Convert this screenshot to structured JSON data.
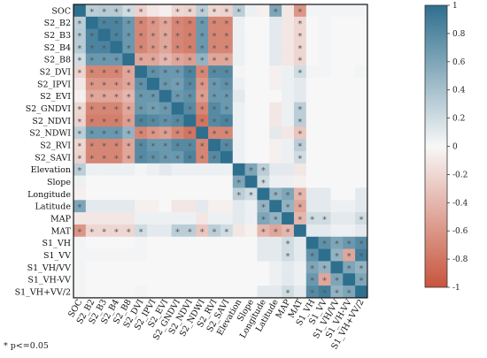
{
  "chart_data": {
    "type": "heatmap",
    "layout": "lower-diagonal full matrix",
    "labels": [
      "SOC",
      "S2_B2",
      "S2_B3",
      "S2_B4",
      "S2_B8",
      "S2_DVI",
      "S2_IPVI",
      "S2_EVI",
      "S2_GNDVI",
      "S2_NDVI",
      "S2_NDWI",
      "S2_RVI",
      "S2_SAVI",
      "Elevation",
      "Slope",
      "Longitude",
      "Latitude",
      "MAP",
      "MAT",
      "S1_VH",
      "S1_VV",
      "S1_VH/VV",
      "S1_VH-VV",
      "S1_VH+VV/2"
    ],
    "values": [
      [
        1,
        0.3,
        0.32,
        0.32,
        0.2,
        -0.22,
        -0.1,
        -0.05,
        -0.2,
        -0.22,
        0.3,
        -0.2,
        -0.22,
        0.3,
        0.05,
        -0.05,
        0.6,
        -0.1,
        -0.6,
        0.02,
        0.02,
        0.02,
        0.02,
        0.02
      ],
      [
        0.3,
        1,
        0.85,
        0.85,
        0.7,
        -0.7,
        -0.6,
        -0.5,
        -0.7,
        -0.75,
        0.7,
        -0.7,
        -0.7,
        0.05,
        0,
        0,
        0.1,
        -0.1,
        -0.2,
        0,
        0.02,
        0,
        0,
        0
      ],
      [
        0.32,
        0.85,
        1,
        0.85,
        0.7,
        -0.7,
        -0.6,
        -0.5,
        -0.7,
        -0.75,
        0.7,
        -0.7,
        -0.7,
        0.05,
        0,
        0,
        0.1,
        -0.1,
        -0.2,
        0,
        0.02,
        0,
        0,
        0
      ],
      [
        0.32,
        0.85,
        0.85,
        1,
        0.7,
        -0.7,
        -0.6,
        -0.5,
        -0.7,
        -0.75,
        0.7,
        -0.7,
        -0.7,
        0.05,
        0,
        0,
        0.1,
        -0.1,
        -0.2,
        0,
        0.02,
        0,
        0,
        0
      ],
      [
        0.2,
        0.7,
        0.7,
        0.7,
        1,
        -0.5,
        -0.5,
        -0.4,
        -0.5,
        -0.55,
        0.5,
        -0.5,
        -0.5,
        0.05,
        0,
        0,
        0.1,
        -0.1,
        -0.2,
        0,
        0.02,
        0,
        0,
        0
      ],
      [
        -0.22,
        -0.7,
        -0.7,
        -0.7,
        -0.5,
        1,
        0.75,
        0.7,
        0.7,
        0.85,
        -0.7,
        0.8,
        0.8,
        0.02,
        0,
        0,
        -0.05,
        0.05,
        0.2,
        0.02,
        0.02,
        0,
        0,
        0.02
      ],
      [
        -0.1,
        -0.6,
        -0.6,
        -0.6,
        -0.5,
        0.75,
        1,
        0.7,
        0.65,
        0.8,
        -0.6,
        0.7,
        0.75,
        0.05,
        0,
        0,
        -0.05,
        0.05,
        0.1,
        0,
        0,
        0,
        0,
        0
      ],
      [
        -0.05,
        -0.5,
        -0.5,
        -0.5,
        -0.4,
        0.7,
        0.7,
        1,
        0.7,
        0.75,
        -0.55,
        0.7,
        0.7,
        0.1,
        0,
        0,
        0,
        0.05,
        0.1,
        0,
        0,
        0,
        0,
        0
      ],
      [
        -0.2,
        -0.7,
        -0.7,
        -0.7,
        -0.5,
        0.7,
        0.65,
        0.7,
        1,
        0.8,
        -0.7,
        0.8,
        0.7,
        0.05,
        0,
        0,
        -0.1,
        0.05,
        0.3,
        0,
        0,
        0,
        0,
        0
      ],
      [
        -0.22,
        -0.75,
        -0.75,
        -0.75,
        -0.55,
        0.85,
        0.8,
        0.75,
        0.8,
        1,
        -0.8,
        0.8,
        0.85,
        0.05,
        0,
        0,
        -0.1,
        0.05,
        0.3,
        0,
        0,
        0,
        0,
        0
      ],
      [
        0.3,
        0.7,
        0.7,
        0.7,
        0.5,
        -0.7,
        -0.6,
        -0.55,
        -0.7,
        -0.8,
        1,
        -0.7,
        -0.7,
        0.05,
        0,
        0,
        0.1,
        -0.1,
        -0.3,
        0,
        0,
        0,
        0,
        0
      ],
      [
        -0.2,
        -0.7,
        -0.7,
        -0.7,
        -0.5,
        0.8,
        0.7,
        0.7,
        0.8,
        0.8,
        -0.7,
        1,
        0.8,
        0.05,
        0,
        0,
        -0.05,
        0.05,
        0.3,
        0,
        0,
        0,
        0,
        0
      ],
      [
        -0.22,
        -0.7,
        -0.7,
        -0.7,
        -0.5,
        0.8,
        0.75,
        0.7,
        0.7,
        0.85,
        -0.7,
        0.8,
        1,
        0.05,
        0,
        0,
        -0.05,
        0.05,
        0.2,
        0,
        0,
        0,
        0,
        0
      ],
      [
        0.3,
        0.05,
        0.05,
        0.05,
        0.05,
        0.02,
        0.05,
        0.1,
        0.05,
        0.05,
        0.05,
        0.05,
        0.05,
        1,
        0.6,
        0.3,
        0.1,
        0.1,
        -0.1,
        0,
        0,
        0,
        0,
        0
      ],
      [
        0.05,
        0,
        0,
        0,
        0,
        0,
        0,
        0,
        0,
        0,
        0,
        0,
        0,
        0.6,
        1,
        0.2,
        0.05,
        0.05,
        -0.05,
        0,
        0,
        0,
        0,
        0
      ],
      [
        -0.05,
        0,
        0,
        0,
        0,
        0,
        0,
        0,
        0,
        0,
        0,
        0,
        0,
        0.3,
        0.2,
        1,
        0.5,
        0.6,
        -0.4,
        0.1,
        0.1,
        0,
        0,
        0.1
      ],
      [
        0.6,
        0.1,
        0.1,
        0.1,
        0.1,
        -0.05,
        -0.05,
        0,
        -0.1,
        -0.1,
        0.1,
        -0.05,
        -0.05,
        0.1,
        0.05,
        0.5,
        1,
        0.5,
        -0.5,
        0.1,
        0.1,
        0.05,
        0.05,
        0.1
      ],
      [
        -0.1,
        -0.1,
        -0.1,
        -0.1,
        -0.1,
        0.05,
        0.05,
        0.05,
        0.05,
        0.05,
        -0.1,
        0.05,
        0.05,
        0.1,
        0.05,
        0.6,
        0.5,
        1,
        -0.4,
        0.2,
        0.2,
        0.1,
        0.1,
        0.2
      ],
      [
        -0.6,
        -0.2,
        -0.2,
        -0.2,
        -0.2,
        0.2,
        0.1,
        0.1,
        0.3,
        0.3,
        -0.3,
        0.3,
        0.2,
        -0.1,
        -0.05,
        -0.4,
        -0.5,
        -0.4,
        1,
        0.1,
        0.1,
        0.05,
        0.05,
        0.1
      ],
      [
        0.02,
        0,
        0,
        0,
        0,
        0.02,
        0,
        0,
        0,
        0,
        0,
        0,
        0,
        0,
        0,
        0.1,
        0.1,
        0.2,
        0.1,
        1,
        0.75,
        0.6,
        0.7,
        0.8
      ],
      [
        0.02,
        0.02,
        0.02,
        0.02,
        0.02,
        0.02,
        0,
        0,
        0,
        0,
        0,
        0,
        0,
        0,
        0,
        0.1,
        0.1,
        0.2,
        0.1,
        0.75,
        1,
        0.5,
        -0.5,
        0.9
      ],
      [
        0.02,
        0,
        0,
        0,
        0,
        0,
        0,
        0,
        0,
        0,
        0,
        0,
        0,
        0,
        0,
        0,
        0.05,
        0.1,
        0.05,
        0.6,
        0.5,
        1,
        0.6,
        0.5
      ],
      [
        0.02,
        0,
        0,
        0,
        0,
        0,
        0,
        0,
        0,
        0,
        0,
        0,
        0,
        0,
        0,
        0,
        0.05,
        0.1,
        0.05,
        0.7,
        -0.5,
        0.6,
        1,
        0.6
      ],
      [
        0.02,
        0,
        0,
        0,
        0,
        0.02,
        0,
        0,
        0,
        0,
        0,
        0,
        0,
        0,
        0,
        0.1,
        0.1,
        0.2,
        0.1,
        0.8,
        0.9,
        0.5,
        0.6,
        1
      ]
    ],
    "colorbar": {
      "min": -1,
      "max": 1,
      "ticks": [
        "1",
        "0.8",
        "0.6",
        "0.4",
        "0.2",
        "0",
        "-0.2",
        "-0.4",
        "-0.6",
        "-0.8",
        "-1"
      ],
      "colors": {
        "neg": "#c8553d",
        "zero": "#f7f7f7",
        "pos": "#2e6f8e"
      }
    },
    "significance_threshold": 0.2,
    "significance_marker": "*",
    "note": "* p<=0.05"
  }
}
